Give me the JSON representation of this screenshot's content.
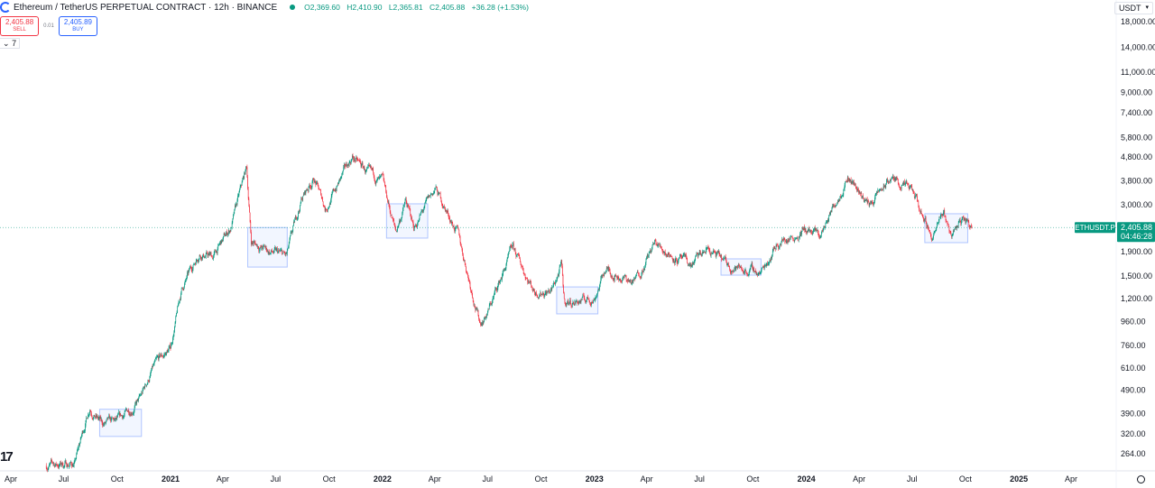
{
  "header": {
    "title": "Ethereum / TetherUS PERPETUAL CONTRACT · 12h · BINANCE",
    "open": "O2,369.60",
    "high": "H2,410.90",
    "low": "L2,365.81",
    "close": "C2,405.88",
    "change": "+36.28 (+1.53%)"
  },
  "trade": {
    "sell_price": "2,405.88",
    "sell_label": "SELL",
    "spread": "0.01",
    "buy_price": "2,405.89",
    "buy_label": "BUY"
  },
  "indicators_toggle": "7",
  "currency": "USDT",
  "logo_text": "17",
  "colors": {
    "up": "#089981",
    "down": "#f23645",
    "box": "#2962ff",
    "last_price": "#089981"
  },
  "chart_data": {
    "type": "candlestick",
    "timeframe": "12h",
    "y_scale": "log",
    "ylim": [
      230,
      19500
    ],
    "y_ticks": [
      "18,000.00",
      "14,000.00",
      "11,000.00",
      "9,000.00",
      "7,400.00",
      "5,800.00",
      "4,800.00",
      "3,800.00",
      "3,000.00",
      "1,900.00",
      "1,500.00",
      "1,200.00",
      "960.00",
      "760.00",
      "610.00",
      "490.00",
      "390.00",
      "320.00",
      "264.00"
    ],
    "x_ticks": [
      {
        "label": "Apr",
        "date": "2020-04-01"
      },
      {
        "label": "Jul",
        "date": "2020-07-01"
      },
      {
        "label": "Oct",
        "date": "2020-10-01"
      },
      {
        "label": "2021",
        "date": "2021-01-01",
        "year": true
      },
      {
        "label": "Apr",
        "date": "2021-04-01"
      },
      {
        "label": "Jul",
        "date": "2021-07-01"
      },
      {
        "label": "Oct",
        "date": "2021-10-01"
      },
      {
        "label": "2022",
        "date": "2022-01-01",
        "year": true
      },
      {
        "label": "Apr",
        "date": "2022-04-01"
      },
      {
        "label": "Jul",
        "date": "2022-07-01"
      },
      {
        "label": "Oct",
        "date": "2022-10-01"
      },
      {
        "label": "2023",
        "date": "2023-01-01",
        "year": true
      },
      {
        "label": "Apr",
        "date": "2023-04-01"
      },
      {
        "label": "Jul",
        "date": "2023-07-01"
      },
      {
        "label": "Oct",
        "date": "2023-10-01"
      },
      {
        "label": "2024",
        "date": "2024-01-01",
        "year": true
      },
      {
        "label": "Apr",
        "date": "2024-04-01"
      },
      {
        "label": "Jul",
        "date": "2024-07-01"
      },
      {
        "label": "Oct",
        "date": "2024-10-01"
      },
      {
        "label": "2025",
        "date": "2025-01-01",
        "year": true
      },
      {
        "label": "Apr",
        "date": "2025-04-01"
      }
    ],
    "price_path": [
      [
        "2020-06-01",
        235
      ],
      [
        "2020-07-20",
        240
      ],
      [
        "2020-08-15",
        420
      ],
      [
        "2020-09-05",
        350
      ],
      [
        "2020-10-01",
        355
      ],
      [
        "2020-11-10",
        450
      ],
      [
        "2020-12-01",
        600
      ],
      [
        "2021-01-01",
        740
      ],
      [
        "2021-01-20",
        1300
      ],
      [
        "2021-02-20",
        1900
      ],
      [
        "2021-03-15",
        1800
      ],
      [
        "2021-04-15",
        2400
      ],
      [
        "2021-05-12",
        4300
      ],
      [
        "2021-05-20",
        2100
      ],
      [
        "2021-06-20",
        1900
      ],
      [
        "2021-07-20",
        1800
      ],
      [
        "2021-08-15",
        3200
      ],
      [
        "2021-09-05",
        3900
      ],
      [
        "2021-09-25",
        2900
      ],
      [
        "2021-11-10",
        4800
      ],
      [
        "2021-12-10",
        4000
      ],
      [
        "2022-01-01",
        3700
      ],
      [
        "2022-01-24",
        2300
      ],
      [
        "2022-02-10",
        3100
      ],
      [
        "2022-02-24",
        2400
      ],
      [
        "2022-04-02",
        3500
      ],
      [
        "2022-05-10",
        2300
      ],
      [
        "2022-06-18",
        950
      ],
      [
        "2022-07-01",
        1050
      ],
      [
        "2022-08-13",
        1950
      ],
      [
        "2022-09-20",
        1300
      ],
      [
        "2022-10-20",
        1300
      ],
      [
        "2022-11-05",
        1650
      ],
      [
        "2022-11-10",
        1150
      ],
      [
        "2022-12-31",
        1200
      ],
      [
        "2023-01-20",
        1600
      ],
      [
        "2023-03-10",
        1400
      ],
      [
        "2023-04-15",
        2050
      ],
      [
        "2023-06-15",
        1650
      ],
      [
        "2023-07-15",
        1950
      ],
      [
        "2023-08-20",
        1650
      ],
      [
        "2023-10-15",
        1550
      ],
      [
        "2023-11-10",
        2050
      ],
      [
        "2023-12-28",
        2350
      ],
      [
        "2024-01-25",
        2200
      ],
      [
        "2024-03-12",
        4050
      ],
      [
        "2024-04-18",
        3000
      ],
      [
        "2024-05-27",
        3900
      ],
      [
        "2024-07-01",
        3400
      ],
      [
        "2024-08-05",
        2200
      ],
      [
        "2024-08-25",
        2750
      ],
      [
        "2024-09-06",
        2250
      ],
      [
        "2024-09-27",
        2650
      ],
      [
        "2024-10-12",
        2405.88
      ]
    ],
    "boxes": [
      {
        "from": "2020-09-01",
        "to": "2020-11-12",
        "low": 312,
        "high": 407
      },
      {
        "from": "2021-05-14",
        "to": "2021-07-21",
        "low": 1634,
        "high": 2405
      },
      {
        "from": "2022-01-08",
        "to": "2022-03-20",
        "low": 2169,
        "high": 3033
      },
      {
        "from": "2022-10-28",
        "to": "2023-01-07",
        "low": 1034,
        "high": 1346
      },
      {
        "from": "2023-08-07",
        "to": "2023-10-15",
        "low": 1510,
        "high": 1771
      },
      {
        "from": "2024-07-23",
        "to": "2024-10-05",
        "low": 2075,
        "high": 2753
      }
    ],
    "last_price": {
      "symbol": "ETHUSDT.P",
      "price": "2,405.88",
      "value": 2405.88,
      "countdown": "04:46:28"
    }
  }
}
